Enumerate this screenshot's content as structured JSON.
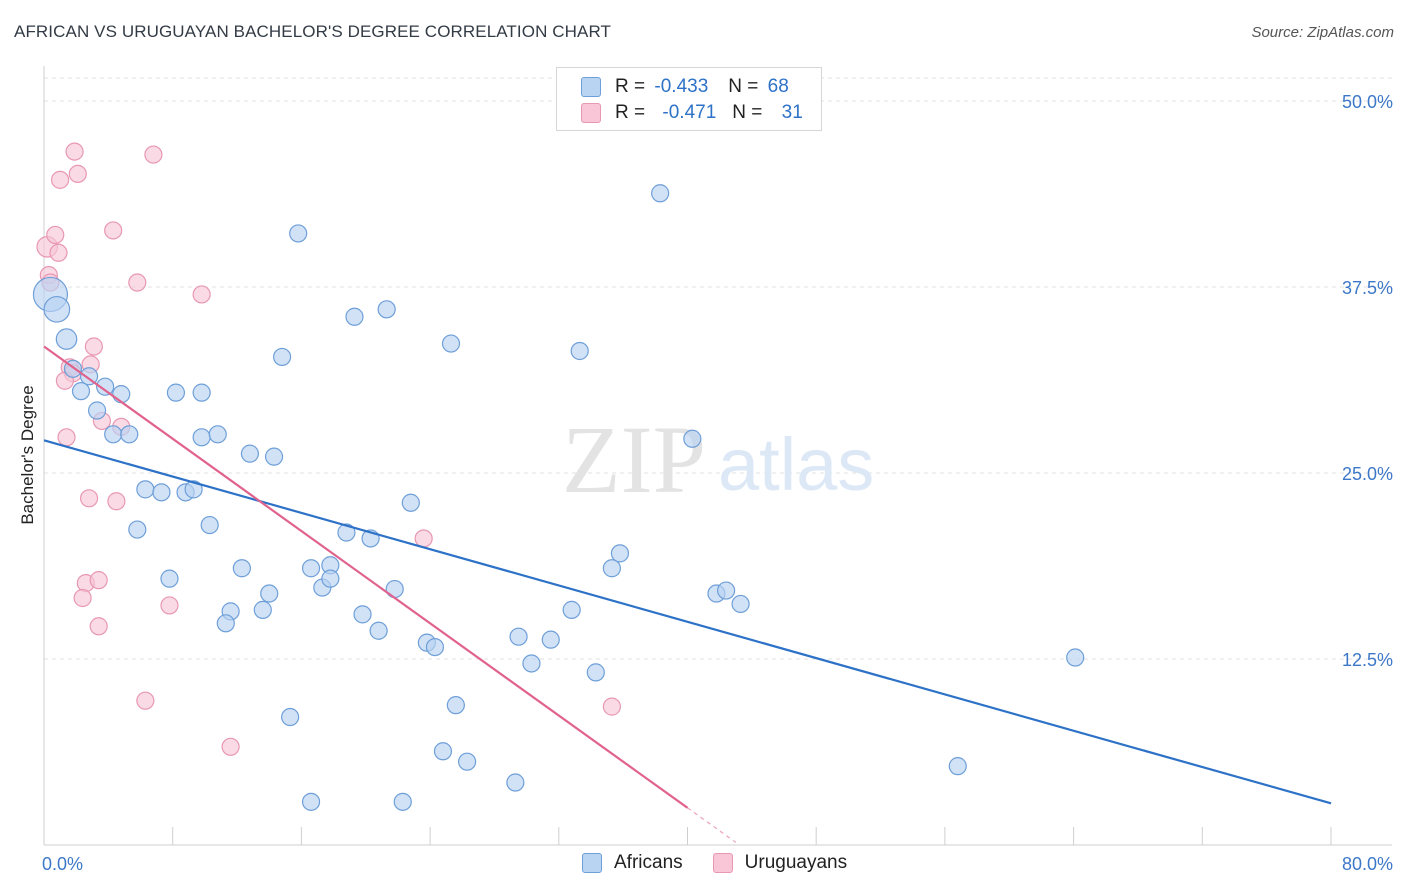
{
  "title": "AFRICAN VS URUGUAYAN BACHELOR'S DEGREE CORRELATION CHART",
  "source": "Source: ZipAtlas.com",
  "watermark": {
    "zip": "ZIP",
    "atlas": "atlas"
  },
  "legend": {
    "africans": {
      "r_label": "R =",
      "r_value": "-0.433",
      "n_label": "N =",
      "n_value": "68"
    },
    "uruguayans": {
      "r_label": "R =",
      "r_value": "-0.471",
      "n_label": "N =",
      "n_value": "31"
    }
  },
  "colors": {
    "africans_fill": "#b9d3f2",
    "africans_stroke": "#6e9fd8",
    "africans_line": "#2d72c7",
    "uruguayans_fill": "#f8c6d6",
    "uruguayans_stroke": "#e898b2",
    "uruguayans_line": "#e0628d",
    "axis_text": "#3d78c8",
    "grid": "#e2e2e2"
  },
  "chart_data": {
    "type": "scatter",
    "title": "AFRICAN VS URUGUAYAN BACHELOR'S DEGREE CORRELATION CHART",
    "xlabel": "",
    "ylabel": "Bachelor's Degree",
    "xlim": [
      0,
      80
    ],
    "ylim": [
      0,
      52
    ],
    "x_tick_labels": [
      "0.0%",
      "80.0%"
    ],
    "y_ticks": [
      12.5,
      25.0,
      37.5,
      50.0
    ],
    "y_tick_labels": [
      "12.5%",
      "25.0%",
      "37.5%",
      "50.0%"
    ],
    "series": [
      {
        "name": "Africans",
        "r": -0.433,
        "n": 68,
        "trend": {
          "x": [
            0,
            80
          ],
          "y": [
            27.2,
            2.8
          ]
        },
        "points": [
          {
            "x": 0.4,
            "y": 37.0,
            "s": 2
          },
          {
            "x": 0.8,
            "y": 36.0,
            "s": 1.5
          },
          {
            "x": 1.4,
            "y": 34.0,
            "s": 1.2
          },
          {
            "x": 1.8,
            "y": 32.0,
            "s": 1
          },
          {
            "x": 2.8,
            "y": 31.5,
            "s": 1
          },
          {
            "x": 2.3,
            "y": 30.5,
            "s": 1
          },
          {
            "x": 3.8,
            "y": 30.8,
            "s": 1
          },
          {
            "x": 4.8,
            "y": 30.3,
            "s": 1
          },
          {
            "x": 8.2,
            "y": 30.4,
            "s": 1
          },
          {
            "x": 9.8,
            "y": 30.4,
            "s": 1
          },
          {
            "x": 3.3,
            "y": 29.2,
            "s": 1
          },
          {
            "x": 4.3,
            "y": 27.6,
            "s": 1
          },
          {
            "x": 5.3,
            "y": 27.6,
            "s": 1
          },
          {
            "x": 9.8,
            "y": 27.4,
            "s": 1
          },
          {
            "x": 10.8,
            "y": 27.6,
            "s": 1
          },
          {
            "x": 12.8,
            "y": 26.3,
            "s": 1
          },
          {
            "x": 14.3,
            "y": 26.1,
            "s": 1
          },
          {
            "x": 6.3,
            "y": 23.9,
            "s": 1
          },
          {
            "x": 7.3,
            "y": 23.7,
            "s": 1
          },
          {
            "x": 8.8,
            "y": 23.7,
            "s": 1
          },
          {
            "x": 9.3,
            "y": 23.9,
            "s": 1
          },
          {
            "x": 5.8,
            "y": 21.2,
            "s": 1
          },
          {
            "x": 10.3,
            "y": 21.5,
            "s": 1
          },
          {
            "x": 12.3,
            "y": 18.6,
            "s": 1
          },
          {
            "x": 7.8,
            "y": 17.9,
            "s": 1
          },
          {
            "x": 14.0,
            "y": 16.9,
            "s": 1
          },
          {
            "x": 11.6,
            "y": 15.7,
            "s": 1
          },
          {
            "x": 11.3,
            "y": 14.9,
            "s": 1
          },
          {
            "x": 13.6,
            "y": 15.8,
            "s": 1
          },
          {
            "x": 15.8,
            "y": 41.1,
            "s": 1
          },
          {
            "x": 14.8,
            "y": 32.8,
            "s": 1
          },
          {
            "x": 16.6,
            "y": 18.6,
            "s": 1
          },
          {
            "x": 17.8,
            "y": 18.8,
            "s": 1
          },
          {
            "x": 17.3,
            "y": 17.3,
            "s": 1
          },
          {
            "x": 17.8,
            "y": 17.9,
            "s": 1
          },
          {
            "x": 18.8,
            "y": 21.0,
            "s": 1
          },
          {
            "x": 19.3,
            "y": 35.5,
            "s": 1
          },
          {
            "x": 21.3,
            "y": 36.0,
            "s": 1
          },
          {
            "x": 20.3,
            "y": 20.6,
            "s": 1
          },
          {
            "x": 21.8,
            "y": 17.2,
            "s": 1
          },
          {
            "x": 19.8,
            "y": 15.5,
            "s": 1
          },
          {
            "x": 20.8,
            "y": 14.4,
            "s": 1
          },
          {
            "x": 22.8,
            "y": 23.0,
            "s": 1
          },
          {
            "x": 23.8,
            "y": 13.6,
            "s": 1
          },
          {
            "x": 24.3,
            "y": 13.3,
            "s": 1
          },
          {
            "x": 25.3,
            "y": 33.7,
            "s": 1
          },
          {
            "x": 25.6,
            "y": 9.4,
            "s": 1
          },
          {
            "x": 24.8,
            "y": 6.3,
            "s": 1
          },
          {
            "x": 26.3,
            "y": 5.6,
            "s": 1
          },
          {
            "x": 15.3,
            "y": 8.6,
            "s": 1
          },
          {
            "x": 16.6,
            "y": 2.9,
            "s": 1
          },
          {
            "x": 22.3,
            "y": 2.9,
            "s": 1
          },
          {
            "x": 29.3,
            "y": 4.2,
            "s": 1
          },
          {
            "x": 29.5,
            "y": 14.0,
            "s": 1
          },
          {
            "x": 30.3,
            "y": 12.2,
            "s": 1
          },
          {
            "x": 31.5,
            "y": 13.8,
            "s": 1
          },
          {
            "x": 33.3,
            "y": 33.2,
            "s": 1
          },
          {
            "x": 32.8,
            "y": 15.8,
            "s": 1
          },
          {
            "x": 34.3,
            "y": 11.6,
            "s": 1
          },
          {
            "x": 35.3,
            "y": 18.6,
            "s": 1
          },
          {
            "x": 35.8,
            "y": 19.6,
            "s": 1
          },
          {
            "x": 38.3,
            "y": 43.8,
            "s": 1
          },
          {
            "x": 40.3,
            "y": 27.3,
            "s": 1
          },
          {
            "x": 41.8,
            "y": 16.9,
            "s": 1
          },
          {
            "x": 42.4,
            "y": 17.1,
            "s": 1
          },
          {
            "x": 43.3,
            "y": 16.2,
            "s": 1
          },
          {
            "x": 56.8,
            "y": 5.3,
            "s": 1
          },
          {
            "x": 64.1,
            "y": 12.6,
            "s": 1
          }
        ]
      },
      {
        "name": "Uruguayans",
        "r": -0.471,
        "n": 31,
        "trend": {
          "x": [
            0,
            40
          ],
          "y": [
            33.5,
            2.5
          ]
        },
        "points": [
          {
            "x": 0.2,
            "y": 40.2,
            "s": 1.2
          },
          {
            "x": 0.3,
            "y": 38.3,
            "s": 1
          },
          {
            "x": 0.4,
            "y": 37.8,
            "s": 1
          },
          {
            "x": 0.7,
            "y": 41.0,
            "s": 1
          },
          {
            "x": 0.9,
            "y": 39.8,
            "s": 1
          },
          {
            "x": 1.0,
            "y": 44.7,
            "s": 1
          },
          {
            "x": 1.9,
            "y": 46.6,
            "s": 1
          },
          {
            "x": 2.1,
            "y": 45.1,
            "s": 1
          },
          {
            "x": 4.3,
            "y": 41.3,
            "s": 1
          },
          {
            "x": 6.8,
            "y": 46.4,
            "s": 1
          },
          {
            "x": 5.8,
            "y": 37.8,
            "s": 1
          },
          {
            "x": 9.8,
            "y": 37.0,
            "s": 1
          },
          {
            "x": 3.1,
            "y": 33.5,
            "s": 1
          },
          {
            "x": 1.6,
            "y": 32.1,
            "s": 1
          },
          {
            "x": 1.8,
            "y": 31.7,
            "s": 1
          },
          {
            "x": 1.3,
            "y": 31.2,
            "s": 1
          },
          {
            "x": 2.9,
            "y": 32.3,
            "s": 1
          },
          {
            "x": 3.6,
            "y": 28.5,
            "s": 1
          },
          {
            "x": 4.8,
            "y": 28.1,
            "s": 1
          },
          {
            "x": 1.4,
            "y": 27.4,
            "s": 1
          },
          {
            "x": 2.8,
            "y": 23.3,
            "s": 1
          },
          {
            "x": 4.5,
            "y": 23.1,
            "s": 1
          },
          {
            "x": 2.6,
            "y": 17.6,
            "s": 1
          },
          {
            "x": 3.4,
            "y": 17.8,
            "s": 1
          },
          {
            "x": 2.4,
            "y": 16.6,
            "s": 1
          },
          {
            "x": 7.8,
            "y": 16.1,
            "s": 1
          },
          {
            "x": 3.4,
            "y": 14.7,
            "s": 1
          },
          {
            "x": 6.3,
            "y": 9.7,
            "s": 1
          },
          {
            "x": 11.6,
            "y": 6.6,
            "s": 1
          },
          {
            "x": 23.6,
            "y": 20.6,
            "s": 1
          },
          {
            "x": 35.3,
            "y": 9.3,
            "s": 1
          }
        ]
      }
    ]
  }
}
